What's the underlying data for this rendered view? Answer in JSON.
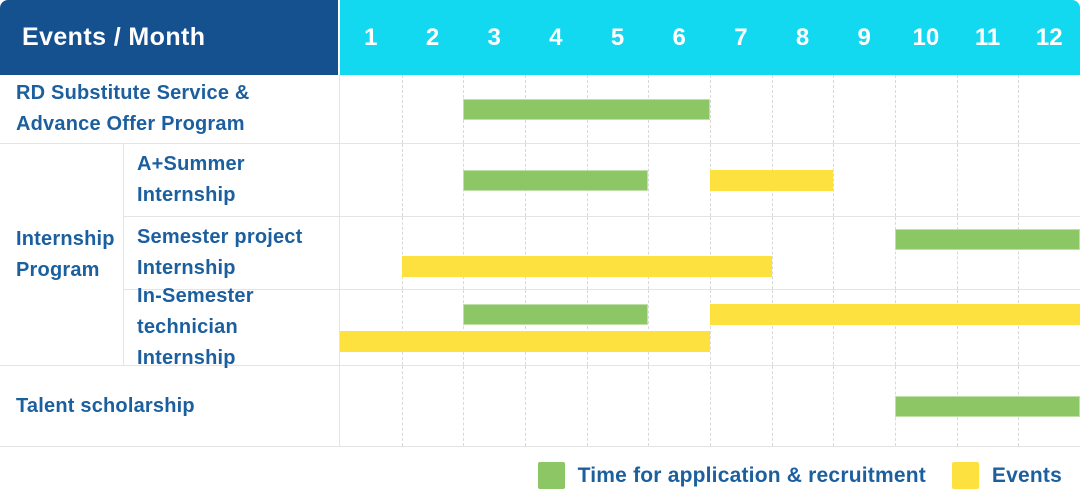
{
  "header": {
    "title": "Events / Month",
    "months": [
      "1",
      "2",
      "3",
      "4",
      "5",
      "6",
      "7",
      "8",
      "9",
      "10",
      "11",
      "12"
    ]
  },
  "colors": {
    "navy": "#15508F",
    "cyan": "#12D8F0",
    "text_blue": "#1C5F9F",
    "green": "#8CC665",
    "yellow": "#FDE23F",
    "grid": "#E4E4E4"
  },
  "sections": [
    {
      "group_label_lines": [
        "RD Substitute Service &",
        "Advance Offer Program"
      ],
      "rows": [
        {
          "label_lines": null,
          "tracks": [
            [
              {
                "color": "green",
                "start": 3,
                "end": 6
              }
            ]
          ]
        }
      ]
    },
    {
      "group_label_lines": [
        "Internship",
        "Program"
      ],
      "rows": [
        {
          "label_lines": [
            "A+Summer",
            "Internship"
          ],
          "tracks": [
            [
              {
                "color": "green",
                "start": 3,
                "end": 5
              },
              {
                "color": "yellow",
                "start": 7,
                "end": 8
              }
            ]
          ]
        },
        {
          "label_lines": [
            "Semester project",
            "Internship"
          ],
          "tracks": [
            [
              {
                "color": "green",
                "start": 10,
                "end": 12
              }
            ],
            [
              {
                "color": "yellow",
                "start": 2,
                "end": 7
              }
            ]
          ]
        },
        {
          "label_lines": [
            "In-Semester",
            "technician Internship"
          ],
          "tracks": [
            [
              {
                "color": "green",
                "start": 3,
                "end": 5
              },
              {
                "color": "yellow",
                "start": 7,
                "end": 12
              }
            ],
            [
              {
                "color": "yellow",
                "start": 1,
                "end": 6
              }
            ]
          ]
        }
      ]
    },
    {
      "group_label_lines": [
        "Talent scholarship"
      ],
      "rows": [
        {
          "label_lines": null,
          "tracks": [
            [
              {
                "color": "green",
                "start": 10,
                "end": 12
              }
            ]
          ]
        }
      ]
    }
  ],
  "legend": {
    "items": [
      {
        "color": "green",
        "label": "Time for application & recruitment"
      },
      {
        "color": "yellow",
        "label": "Events"
      }
    ]
  },
  "chart_data": {
    "type": "gantt",
    "title": "Events / Month",
    "x_axis": {
      "label": "Month",
      "ticks": [
        1,
        2,
        3,
        4,
        5,
        6,
        7,
        8,
        9,
        10,
        11,
        12
      ],
      "range": [
        1,
        12
      ]
    },
    "legend_position": "bottom-right",
    "grid": "dashed-vertical-month-lines",
    "series_meaning": {
      "green": "Time for application & recruitment",
      "yellow": "Events"
    },
    "tasks": [
      {
        "event": "RD Substitute Service & Advance Offer Program",
        "bars": [
          {
            "kind": "application_recruitment",
            "color": "green",
            "month_start": 3,
            "month_end": 6
          }
        ]
      },
      {
        "event": "Internship Program - A+Summer Internship",
        "bars": [
          {
            "kind": "application_recruitment",
            "color": "green",
            "month_start": 3,
            "month_end": 5
          },
          {
            "kind": "events",
            "color": "yellow",
            "month_start": 7,
            "month_end": 8
          }
        ]
      },
      {
        "event": "Internship Program - Semester project Internship",
        "bars": [
          {
            "kind": "application_recruitment",
            "color": "green",
            "month_start": 10,
            "month_end": 12
          },
          {
            "kind": "events",
            "color": "yellow",
            "month_start": 2,
            "month_end": 7
          }
        ]
      },
      {
        "event": "Internship Program - In-Semester technician Internship",
        "bars": [
          {
            "kind": "application_recruitment",
            "color": "green",
            "month_start": 3,
            "month_end": 5
          },
          {
            "kind": "events",
            "color": "yellow",
            "month_start": 7,
            "month_end": 12
          },
          {
            "kind": "events",
            "color": "yellow",
            "month_start": 1,
            "month_end": 6
          }
        ]
      },
      {
        "event": "Talent scholarship",
        "bars": [
          {
            "kind": "application_recruitment",
            "color": "green",
            "month_start": 10,
            "month_end": 12
          }
        ]
      }
    ]
  }
}
